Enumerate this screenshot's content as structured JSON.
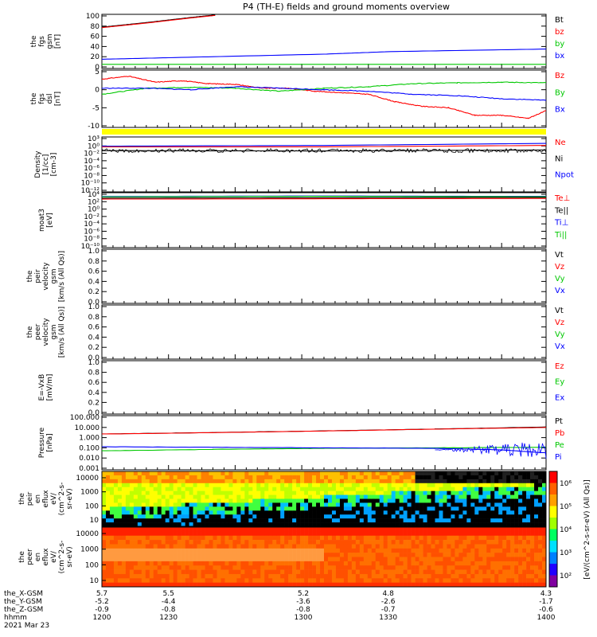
{
  "title": "P4 (TH-E) fields and ground moments overview",
  "colors": {
    "black": "#000000",
    "red": "#ff0000",
    "green": "#00c800",
    "blue": "#0000ff",
    "dark_red": "#8b0000",
    "yellow": "#ffff00",
    "purple": "#7b007b"
  },
  "chart_data": [
    {
      "type": "line",
      "panel": "fgs-gsm",
      "ylabel": [
        "the",
        "fgs",
        "gsm",
        "[nT]"
      ],
      "ylim": [
        0,
        100
      ],
      "yticks": [
        "100",
        "80",
        "60",
        "40",
        "20",
        "0"
      ],
      "legend": [
        {
          "label": "Bt",
          "color": "#000000"
        },
        {
          "label": "bz",
          "color": "#ff0000"
        },
        {
          "label": "by",
          "color": "#00c800"
        },
        {
          "label": "bx",
          "color": "#0000ff"
        }
      ],
      "series": [
        {
          "name": "Bt",
          "color": "#000000",
          "x": [
            1200,
            1220,
            1240,
            1251,
            1300,
            1400
          ],
          "y": [
            78,
            87,
            97,
            102,
            null,
            null
          ]
        },
        {
          "name": "bz",
          "color": "#ff0000",
          "x": [
            1200,
            1220,
            1240,
            1251
          ],
          "y": [
            77,
            86,
            96,
            101
          ]
        },
        {
          "name": "by",
          "color": "#00c800",
          "x": [
            1200,
            1300,
            1400
          ],
          "y": [
            5,
            5,
            5
          ]
        },
        {
          "name": "bx",
          "color": "#0000ff",
          "x": [
            1200,
            1230,
            1300,
            1330,
            1400
          ],
          "y": [
            15,
            18,
            25,
            30,
            35
          ]
        }
      ]
    },
    {
      "type": "line",
      "panel": "fgs-dsl",
      "ylabel": [
        "the",
        "fgs",
        "dsl",
        "[nT]"
      ],
      "ylim": [
        -12,
        6
      ],
      "yticks": [
        "5",
        "0",
        "-5",
        "-10"
      ],
      "legend": [
        {
          "label": "Bz",
          "color": "#ff0000"
        },
        {
          "label": "By",
          "color": "#00c800"
        },
        {
          "label": "Bx",
          "color": "#0000ff"
        }
      ],
      "series": [
        {
          "name": "Bz",
          "color": "#ff0000",
          "x": [
            1200,
            1212,
            1224,
            1236,
            1248,
            1260,
            1272,
            1284,
            1296,
            1308,
            1320,
            1332,
            1344,
            1356,
            1368,
            1380,
            1392,
            1400
          ],
          "y": [
            3.5,
            4.5,
            2.5,
            3.0,
            2.0,
            1.8,
            0.5,
            0.5,
            -0.5,
            -1.0,
            -1.5,
            -4.0,
            -5.5,
            -6.0,
            -8.5,
            -8.5,
            -9.5,
            -7.0
          ]
        },
        {
          "name": "By",
          "color": "#00c800",
          "x": [
            1200,
            1220,
            1240,
            1260,
            1280,
            1300,
            1320,
            1340,
            1360,
            1380,
            1400
          ],
          "y": [
            -1.5,
            0.5,
            0.8,
            0.5,
            -0.5,
            0.5,
            1.0,
            2.0,
            2.3,
            2.5,
            2.3
          ]
        },
        {
          "name": "Bx",
          "color": "#0000ff",
          "x": [
            1200,
            1220,
            1240,
            1260,
            1280,
            1300,
            1320,
            1340,
            1360,
            1380,
            1400
          ],
          "y": [
            0.5,
            0.5,
            0.0,
            1.0,
            0.5,
            0.0,
            -0.5,
            -1.5,
            -2.0,
            -3.0,
            -3.5
          ]
        }
      ]
    },
    {
      "type": "line",
      "panel": "density",
      "log": true,
      "ylabel": [
        "Density",
        "[1/cc]",
        "[cm-3]"
      ],
      "ylim": [
        -12,
        3
      ],
      "yticks": [
        "10³",
        "10⁰",
        "10⁻²",
        "10⁻⁴",
        "10⁻⁶",
        "10⁻⁸",
        "10⁻¹⁰",
        "10⁻¹²"
      ],
      "legend": [
        {
          "label": "Ne",
          "color": "#ff0000"
        },
        {
          "label": "Ni",
          "color": "#000000"
        },
        {
          "label": "Npot",
          "color": "#0000ff"
        }
      ],
      "series": [
        {
          "name": "Ne",
          "color": "#ff0000",
          "x": [
            1200,
            1300,
            1400
          ],
          "y": [
            0.6,
            0.6,
            1.0
          ]
        },
        {
          "name": "Ni",
          "color": "#000000",
          "x": [
            1200,
            1300,
            1400
          ],
          "y": [
            -0.5,
            -0.6,
            -0.3
          ]
        },
        {
          "name": "Npot",
          "color": "#0000ff",
          "x": [
            1200,
            1300,
            1400
          ],
          "y": [
            0.8,
            1.0,
            1.6
          ]
        }
      ]
    },
    {
      "type": "line",
      "panel": "temperature",
      "log": true,
      "ylabel": [
        "moat3",
        "[eV]"
      ],
      "ylim": [
        -11,
        4
      ],
      "yticks": [
        "10⁴",
        "10²",
        "10⁰",
        "10⁻²",
        "10⁻⁴",
        "10⁻⁶",
        "10⁻⁸",
        "10⁻¹⁰"
      ],
      "legend": [
        {
          "label": "Te⊥",
          "color": "#ff0000"
        },
        {
          "label": "Te||",
          "color": "#000000"
        },
        {
          "label": "Ti⊥",
          "color": "#0000ff"
        },
        {
          "label": "Ti||",
          "color": "#00c800"
        }
      ],
      "series": [
        {
          "name": "Te⊥",
          "color": "#ff0000",
          "x": [
            1200,
            1300,
            1400
          ],
          "y": [
            2.6,
            2.7,
            2.8
          ]
        },
        {
          "name": "Te||",
          "color": "#000000",
          "x": [
            1200,
            1300,
            1400
          ],
          "y": [
            2.9,
            3.0,
            3.1
          ]
        },
        {
          "name": "Ti⊥",
          "color": "#0000ff",
          "x": [
            1200,
            1300,
            1400
          ],
          "y": [
            3.4,
            3.5,
            3.4
          ]
        },
        {
          "name": "Ti||",
          "color": "#00c800",
          "x": [
            1200,
            1300,
            1400
          ],
          "y": [
            3.3,
            3.4,
            3.3
          ]
        }
      ]
    },
    {
      "type": "line",
      "panel": "peir-velocity",
      "ylabel": [
        "the",
        "peir",
        "velocity",
        "gsm",
        "[km/s (All Qs)]"
      ],
      "ylim": [
        0,
        1
      ],
      "yticks": [
        "1.0",
        "0.8",
        "0.6",
        "0.4",
        "0.2",
        "0.0"
      ],
      "legend": [
        {
          "label": "Vt",
          "color": "#000000"
        },
        {
          "label": "Vz",
          "color": "#ff0000"
        },
        {
          "label": "Vy",
          "color": "#00c800"
        },
        {
          "label": "Vx",
          "color": "#0000ff"
        }
      ],
      "series": []
    },
    {
      "type": "line",
      "panel": "peer-velocity",
      "ylabel": [
        "the",
        "peer",
        "velocity",
        "gsm",
        "[km/s (All Qs)]"
      ],
      "ylim": [
        0,
        1
      ],
      "yticks": [
        "1.0",
        "0.8",
        "0.6",
        "0.4",
        "0.2",
        "0.0"
      ],
      "legend": [
        {
          "label": "Vt",
          "color": "#000000"
        },
        {
          "label": "Vz",
          "color": "#ff0000"
        },
        {
          "label": "Vy",
          "color": "#00c800"
        },
        {
          "label": "Vx",
          "color": "#0000ff"
        }
      ],
      "series": []
    },
    {
      "type": "line",
      "panel": "efield",
      "ylabel": [
        "E=-VxB",
        "[mV/m]"
      ],
      "ylim": [
        0,
        1
      ],
      "yticks": [
        "1.0",
        "0.8",
        "0.6",
        "0.4",
        "0.2",
        "0.0"
      ],
      "legend": [
        {
          "label": "Ez",
          "color": "#ff0000"
        },
        {
          "label": "Ey",
          "color": "#00c800"
        },
        {
          "label": "Ex",
          "color": "#0000ff"
        }
      ],
      "series": []
    },
    {
      "type": "line",
      "panel": "pressure",
      "log": true,
      "ylabel": [
        "Pressure",
        "[nPa]"
      ],
      "ylim": [
        -3,
        2
      ],
      "yticks": [
        "100.000",
        "10.000",
        "1.000",
        "0.100",
        "0.010",
        "0.001"
      ],
      "legend": [
        {
          "label": "Pt",
          "color": "#000000"
        },
        {
          "label": "Pb",
          "color": "#ff0000"
        },
        {
          "label": "Pe",
          "color": "#00c800"
        },
        {
          "label": "Pi",
          "color": "#0000ff"
        }
      ],
      "series": [
        {
          "name": "Pt",
          "color": "#000000",
          "x": [
            1200,
            1250,
            1300,
            1350,
            1400
          ],
          "y": [
            0.36,
            0.5,
            0.66,
            0.84,
            1.04
          ]
        },
        {
          "name": "Pb",
          "color": "#ff0000",
          "x": [
            1200,
            1250,
            1300,
            1350,
            1400
          ],
          "y": [
            0.35,
            0.49,
            0.65,
            0.83,
            1.0
          ]
        },
        {
          "name": "Pe",
          "color": "#00c800",
          "x": [
            1200,
            1250,
            1300,
            1350,
            1400
          ],
          "y": [
            -1.3,
            -1.15,
            -1.05,
            -1.0,
            -0.95
          ]
        },
        {
          "name": "Pi",
          "color": "#0000ff",
          "x": [
            1200,
            1250,
            1300,
            1350,
            1380,
            1400
          ],
          "y": [
            -0.9,
            -0.95,
            -1.0,
            -1.05,
            -1.2,
            -1.5
          ]
        }
      ]
    },
    {
      "type": "heatmap",
      "panel": "peir-eflux",
      "ylabel": [
        "the",
        "peir",
        "en",
        "eflux",
        "eV/",
        "(cm^2-s-",
        "sr-eV)"
      ],
      "yticks": [
        "10000",
        "1000",
        "100",
        "10"
      ],
      "note": "ion energy flux spectrogram, 5 eV - 25 keV, saturated above ~1 keV early, decreasing after 1300"
    },
    {
      "type": "heatmap",
      "panel": "peer-eflux",
      "ylabel": [
        "the",
        "peer",
        "en",
        "eflux",
        "eV/",
        "(cm^2-s-",
        "sr-eV)"
      ],
      "yticks": [
        "10000",
        "1000",
        "100",
        "10"
      ],
      "note": "electron energy flux spectrogram, mostly saturated red/orange"
    }
  ],
  "colorbar": {
    "label": "[eV/(cm^2-s-sr-eV) (All Qs)]",
    "ticks": [
      "10⁶",
      "10⁵",
      "10⁴",
      "10³",
      "10²"
    ]
  },
  "xaxis": {
    "rows": [
      {
        "label": "the_X-GSM",
        "values": [
          "5.7",
          "5.5",
          "5.2",
          "4.8",
          "4.3"
        ]
      },
      {
        "label": "the_Y-GSM",
        "values": [
          "-5.2",
          "-4.4",
          "-3.6",
          "-2.6",
          "-1.7"
        ]
      },
      {
        "label": "the_Z-GSM",
        "values": [
          "-0.9",
          "-0.8",
          "-0.8",
          "-0.7",
          "-0.6"
        ]
      },
      {
        "label": "hhmm",
        "values": [
          "1200",
          "1230",
          "1300",
          "1330",
          "1400"
        ]
      }
    ],
    "date": "2021 Mar 23"
  }
}
